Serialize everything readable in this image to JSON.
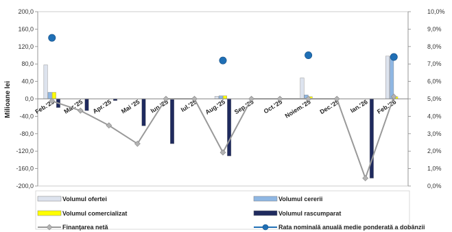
{
  "chart_data": {
    "type": "bar",
    "title": "",
    "xlabel": "",
    "ylabel": "Milioane lei",
    "ylim": [
      -200,
      200
    ],
    "y_ticks": [
      "200,0",
      "160,0",
      "120,0",
      "80,0",
      "40,0",
      "0,0",
      "-40,0",
      "-80,0",
      "-120,0",
      "-160,0",
      "-200,0"
    ],
    "y2lim": [
      0,
      10
    ],
    "y2_ticks": [
      "10,0%",
      "9,0%",
      "8,0%",
      "7,0%",
      "6,0%",
      "5,0%",
      "4,0%",
      "3,0%",
      "2,0%",
      "1,0%",
      "0,0%"
    ],
    "categories": [
      "Feb.'25",
      "Mar.'25",
      "Apr.'25",
      "Mai '25",
      "Iun.'25",
      "Iul.'25",
      "Aug.'25",
      "Sep.'25",
      "Oct.'25",
      "Noiem.'25",
      "Dec.'25",
      "Ian.'26",
      "Feb.'26"
    ],
    "series": [
      {
        "name": "Volumul ofertei",
        "kind": "bar",
        "color": "#dde3ee",
        "values": [
          78,
          0,
          0,
          0,
          0,
          0,
          6,
          0,
          0,
          48,
          0,
          0,
          98
        ]
      },
      {
        "name": "Volumul cererii",
        "kind": "bar",
        "color": "#8fb7e3",
        "values": [
          15,
          0,
          0,
          0,
          0,
          0,
          7,
          0,
          0,
          9,
          0,
          0,
          98
        ]
      },
      {
        "name": "Volumul comercializat",
        "kind": "bar",
        "color": "#ffff00",
        "values": [
          15,
          0,
          0,
          0,
          0,
          0,
          7,
          0,
          0,
          5,
          0,
          0,
          5
        ]
      },
      {
        "name": "Volumul rascumparat",
        "kind": "bar",
        "color": "#1f2a5e",
        "values": [
          -20,
          -27,
          -4,
          -62,
          -103,
          0,
          -131,
          0,
          0,
          0,
          0,
          -182,
          0
        ]
      },
      {
        "name": "Finanţarea netă",
        "kind": "line",
        "axis": "left",
        "color": "#999999",
        "values": [
          -5,
          -27,
          -61,
          -103,
          0,
          0,
          -123,
          0,
          0,
          0,
          0,
          -182,
          5
        ]
      },
      {
        "name": "Rata nominală anuală medie ponderată a dobânzii",
        "kind": "scatter",
        "axis": "right",
        "color": "#1f6fb5",
        "values": [
          8.5,
          null,
          null,
          null,
          null,
          null,
          7.2,
          null,
          null,
          7.5,
          null,
          null,
          7.4
        ]
      }
    ],
    "legend": "bottom",
    "grid": false
  }
}
